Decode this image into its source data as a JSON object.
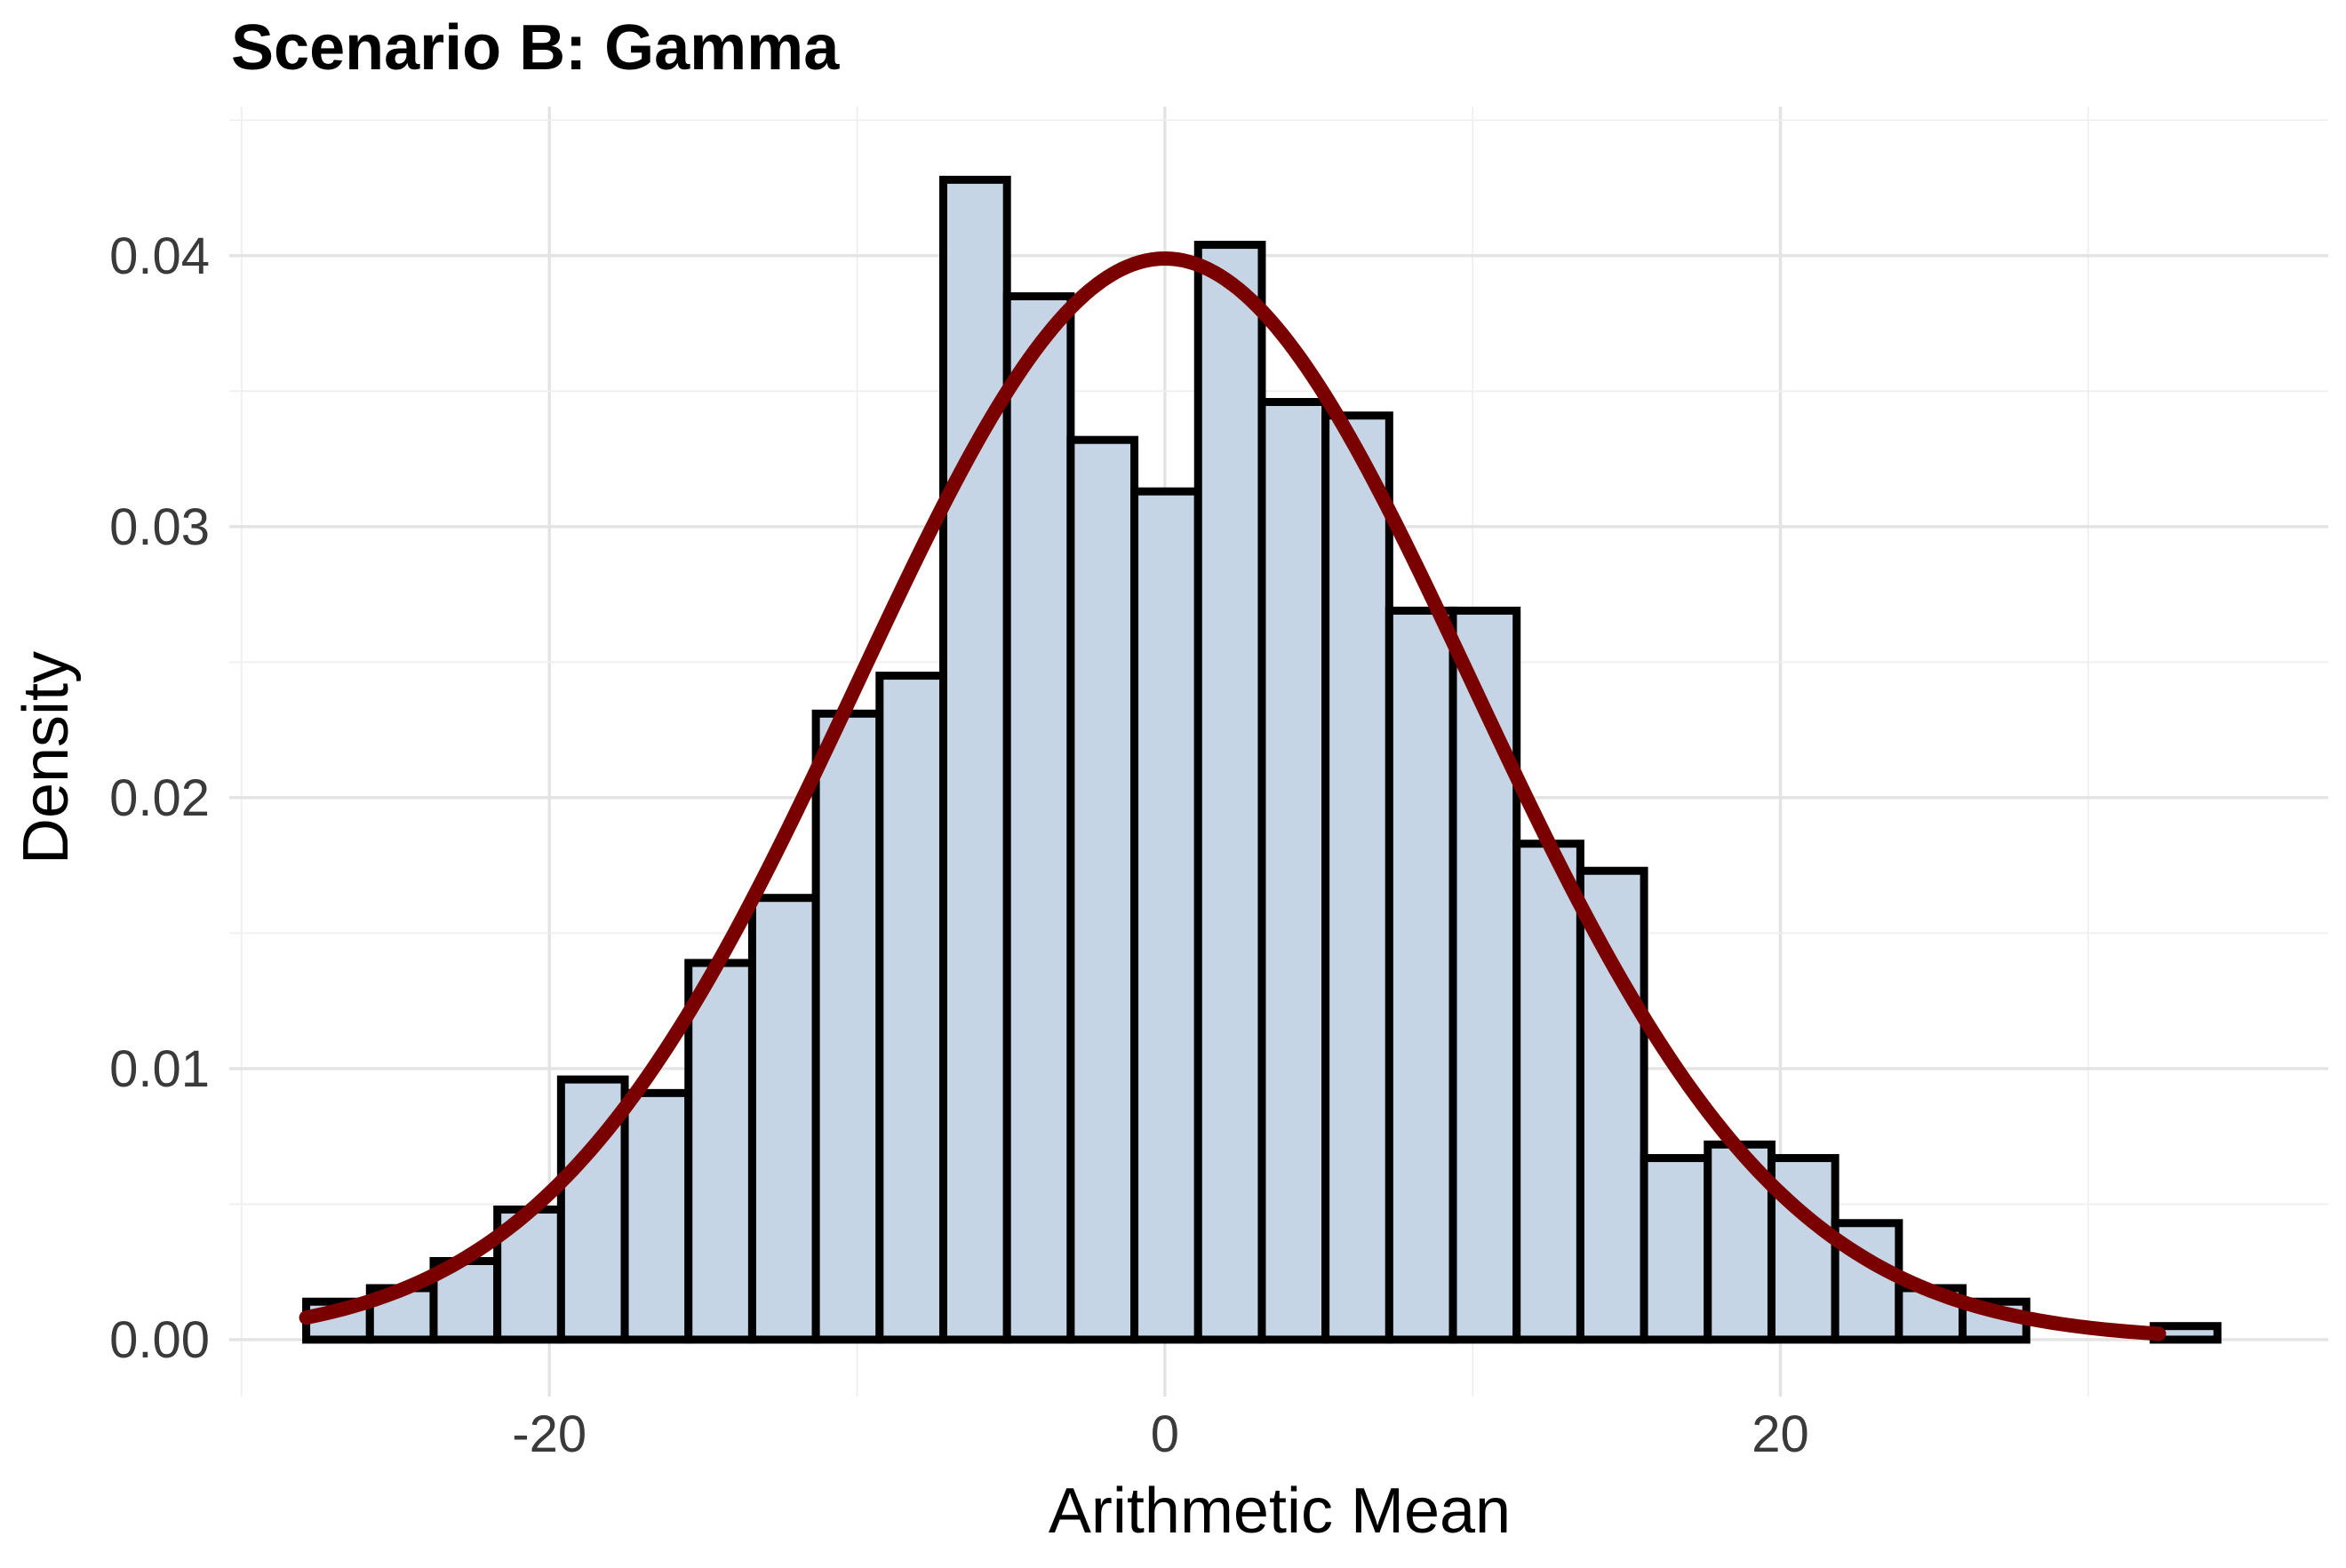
{
  "chart_data": {
    "type": "bar",
    "title": "Scenario B: Gamma",
    "xlabel": "Arithmetic Mean",
    "ylabel": "Density",
    "xlim": [
      -30.4,
      37.8
    ],
    "ylim": [
      -0.0021,
      0.0455
    ],
    "x_ticks": [
      -20,
      0,
      20
    ],
    "x_tick_labels": [
      "-20",
      "0",
      "20"
    ],
    "y_ticks": [
      0,
      0.01,
      0.02,
      0.03,
      0.04
    ],
    "y_tick_labels": [
      "0.00",
      "0.01",
      "0.02",
      "0.03",
      "0.04"
    ],
    "grid": true,
    "bin_width": 2.07,
    "bins": [
      {
        "x0": -27.9,
        "x1": -25.83,
        "density": 0.0014
      },
      {
        "x0": -25.83,
        "x1": -23.76,
        "density": 0.0019
      },
      {
        "x0": -23.76,
        "x1": -21.69,
        "density": 0.0029
      },
      {
        "x0": -21.69,
        "x1": -19.62,
        "density": 0.0048
      },
      {
        "x0": -19.62,
        "x1": -17.55,
        "density": 0.0096
      },
      {
        "x0": -17.55,
        "x1": -15.48,
        "density": 0.0091
      },
      {
        "x0": -15.48,
        "x1": -13.41,
        "density": 0.0139
      },
      {
        "x0": -13.41,
        "x1": -11.34,
        "density": 0.0163
      },
      {
        "x0": -11.34,
        "x1": -9.27,
        "density": 0.0231
      },
      {
        "x0": -9.27,
        "x1": -7.2,
        "density": 0.0245
      },
      {
        "x0": -7.2,
        "x1": -5.13,
        "density": 0.0428
      },
      {
        "x0": -5.13,
        "x1": -3.06,
        "density": 0.0385
      },
      {
        "x0": -3.06,
        "x1": -0.99,
        "density": 0.0332
      },
      {
        "x0": -0.99,
        "x1": 1.08,
        "density": 0.0313
      },
      {
        "x0": 1.08,
        "x1": 3.15,
        "density": 0.0404
      },
      {
        "x0": 3.15,
        "x1": 5.22,
        "density": 0.0346
      },
      {
        "x0": 5.22,
        "x1": 7.29,
        "density": 0.0341
      },
      {
        "x0": 7.29,
        "x1": 9.36,
        "density": 0.0269
      },
      {
        "x0": 9.36,
        "x1": 11.43,
        "density": 0.0269
      },
      {
        "x0": 11.43,
        "x1": 13.5,
        "density": 0.0183
      },
      {
        "x0": 13.5,
        "x1": 15.57,
        "density": 0.0173
      },
      {
        "x0": 15.57,
        "x1": 17.64,
        "density": 0.0067
      },
      {
        "x0": 17.64,
        "x1": 19.71,
        "density": 0.0072
      },
      {
        "x0": 19.71,
        "x1": 21.78,
        "density": 0.0067
      },
      {
        "x0": 21.78,
        "x1": 23.85,
        "density": 0.0043
      },
      {
        "x0": 23.85,
        "x1": 25.92,
        "density": 0.0019
      },
      {
        "x0": 25.92,
        "x1": 27.99,
        "density": 0.0014
      },
      {
        "x0": 27.99,
        "x1": 30.06,
        "density": 0
      },
      {
        "x0": 30.06,
        "x1": 32.13,
        "density": 0
      },
      {
        "x0": 32.13,
        "x1": 34.2,
        "density": 0.0005
      }
    ],
    "overlay_curve": {
      "type": "normal_density",
      "mean": 0,
      "sd": 10,
      "x_range": [
        -27.9,
        32.3
      ],
      "color": "#7a0000"
    },
    "bar_fill": "#c6d5e5",
    "bar_stroke": "#000000"
  }
}
